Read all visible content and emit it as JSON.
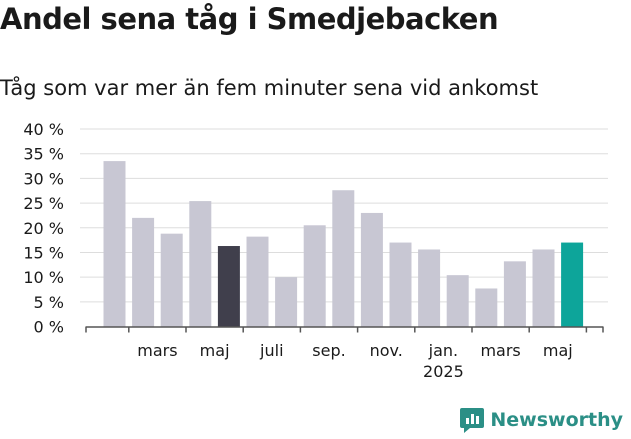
{
  "title": "Andel sena tåg i Smedjebacken",
  "subtitle": "Tåg som var mer än fem minuter sena vid ankomst",
  "brand": {
    "name": "Newsworthy",
    "color": "#2b8f86"
  },
  "colors": {
    "default": "#c8c7d3",
    "highlight_dark": "#403f4c",
    "highlight_teal": "#0da59a",
    "grid": "#dddddd",
    "axis": "#555555"
  },
  "chart_data": {
    "type": "bar",
    "title": "Andel sena tåg i Smedjebacken",
    "subtitle": "Tåg som var mer än fem minuter sena vid ankomst",
    "ylim": [
      0,
      40
    ],
    "yticks": [
      0,
      5,
      10,
      15,
      20,
      25,
      30,
      35,
      40
    ],
    "yunit": " %",
    "grid": true,
    "values": [
      33.5,
      22,
      18.8,
      25.4,
      16.3,
      18.2,
      10,
      20.5,
      27.6,
      23,
      17,
      15.6,
      10.4,
      7.7,
      13.2,
      15.6,
      17
    ],
    "highlight": {
      "4": "dark",
      "16": "teal"
    },
    "xtick_labels": [
      {
        "bar": 1.5,
        "lines": [
          "mars"
        ]
      },
      {
        "bar": 3.5,
        "lines": [
          "maj"
        ]
      },
      {
        "bar": 5.5,
        "lines": [
          "juli"
        ]
      },
      {
        "bar": 7.5,
        "lines": [
          "sep."
        ]
      },
      {
        "bar": 9.5,
        "lines": [
          "nov."
        ]
      },
      {
        "bar": 11.5,
        "lines": [
          "jan.",
          "2025"
        ]
      },
      {
        "bar": 13.5,
        "lines": [
          "mars"
        ]
      },
      {
        "bar": 15.5,
        "lines": [
          "maj"
        ]
      }
    ]
  }
}
